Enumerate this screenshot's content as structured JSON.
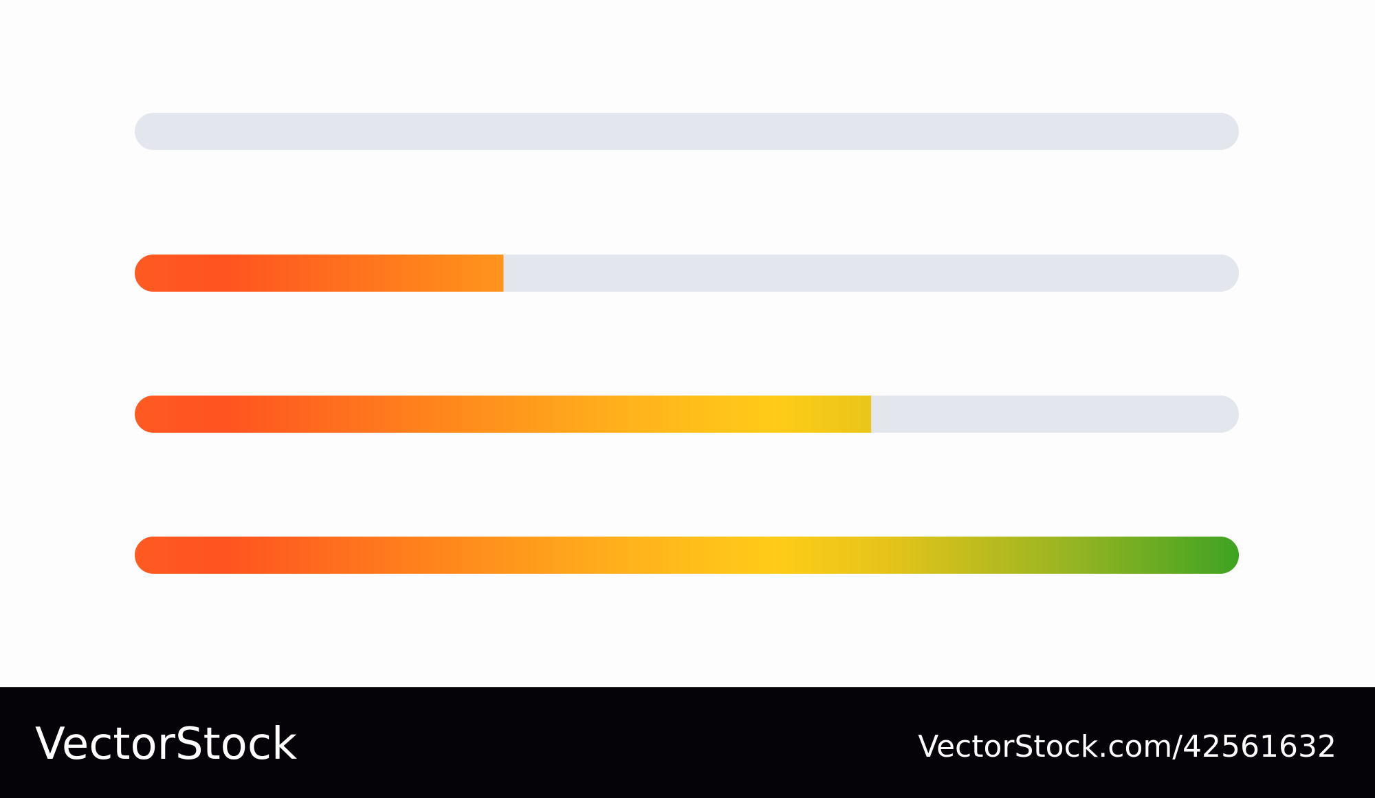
{
  "progress_bars": [
    {
      "value": 0
    },
    {
      "value": 33.4
    },
    {
      "value": 66.7
    },
    {
      "value": 100
    }
  ],
  "footer": {
    "brand": "VectorStock",
    "url": "VectorStock.com/42561632"
  }
}
